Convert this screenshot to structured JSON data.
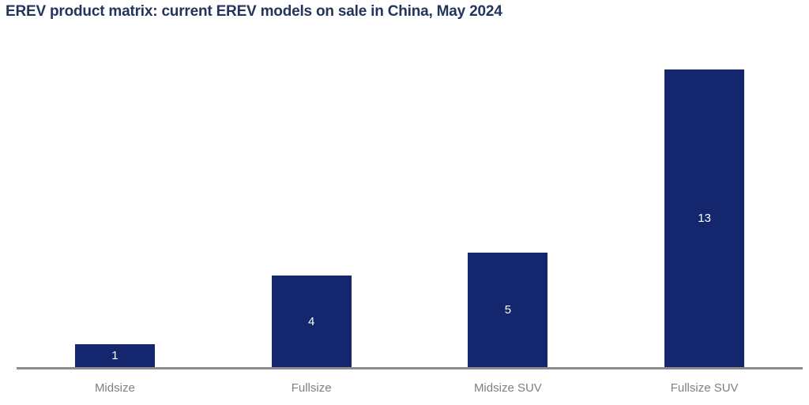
{
  "title": "EREV product matrix: current EREV models on sale in China, May 2024",
  "chart_data": {
    "type": "bar",
    "title": "EREV product matrix: current EREV models on sale in China, May 2024",
    "categories": [
      "Midsize",
      "Fullsize",
      "Midsize SUV",
      "Fullsize SUV"
    ],
    "values": [
      1,
      4,
      5,
      13
    ],
    "xlabel": "",
    "ylabel": "",
    "ylim": [
      0,
      13
    ],
    "grid": false,
    "legend": false,
    "y_axis_visible": false,
    "value_label_position": "inside-center",
    "bar_color": "#13266e",
    "value_label_color": "#ffffff"
  },
  "colors": {
    "background": "#ffffff",
    "title_text": "#24355c",
    "axis_line": "#8c8c8c",
    "category_label": "#808080"
  }
}
